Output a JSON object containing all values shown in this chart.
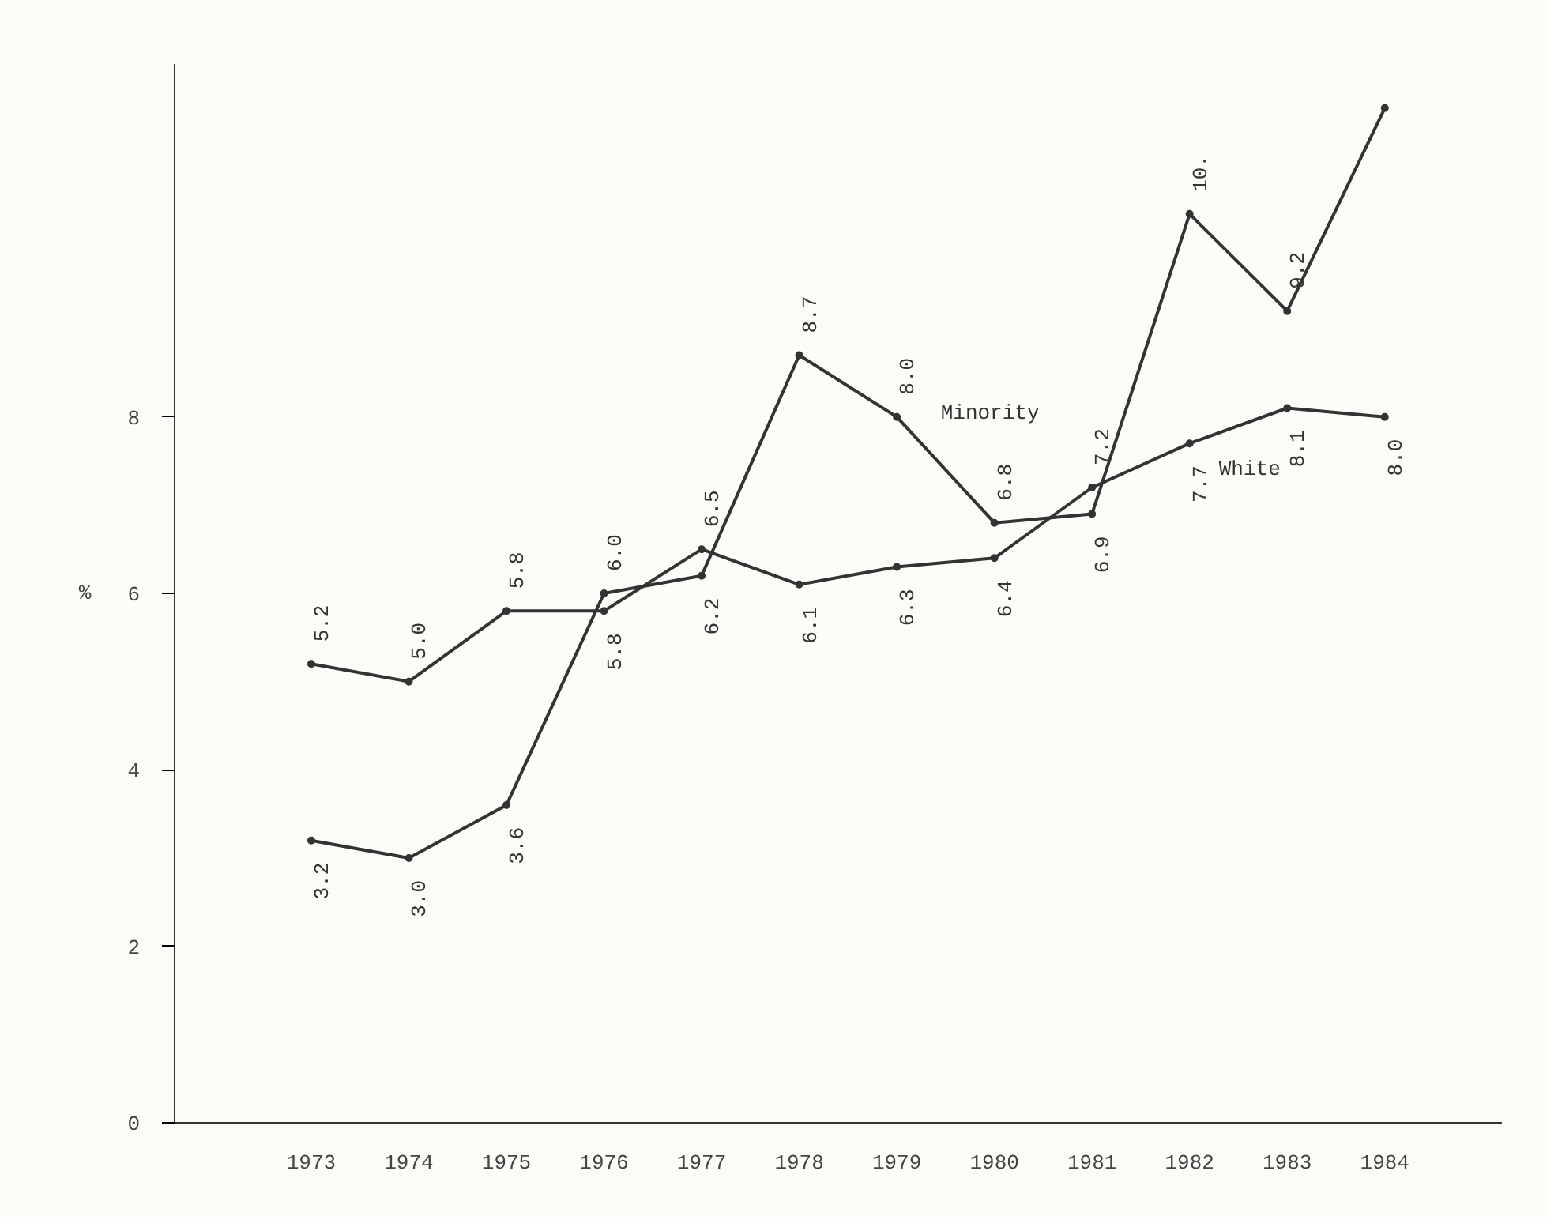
{
  "chart_data": {
    "type": "line",
    "ylabel": "%",
    "x": [
      1973,
      1974,
      1975,
      1976,
      1977,
      1978,
      1979,
      1980,
      1981,
      1982,
      1983,
      1984
    ],
    "xlim": [
      1971.6,
      1985.2
    ],
    "xticks": [
      1973,
      1974,
      1975,
      1976,
      1977,
      1978,
      1979,
      1980,
      1981,
      1982,
      1983,
      1984
    ],
    "ylim": [
      0,
      12
    ],
    "yticks": [
      0,
      2,
      4,
      6,
      8
    ],
    "grid": false,
    "legend": false,
    "marker": "circle",
    "line_style": "solid",
    "series": [
      {
        "name": "Minority",
        "color": "#333333",
        "values": [
          3.2,
          3.0,
          3.6,
          6.0,
          6.2,
          8.7,
          8.0,
          6.8,
          6.9,
          10.3,
          9.2,
          11.5
        ],
        "value_labels": [
          "3.2",
          "3.0",
          "3.6",
          "6.0",
          "6.2",
          "8.7",
          "8.0",
          "6.8",
          "6.9",
          "10.",
          "9.2",
          null
        ]
      },
      {
        "name": "White",
        "color": "#333333",
        "values": [
          5.2,
          5.0,
          5.8,
          5.8,
          6.5,
          6.1,
          6.3,
          6.4,
          7.2,
          7.7,
          8.1,
          8.0
        ],
        "value_labels": [
          "5.2",
          "5.0",
          "5.8",
          "5.8",
          "6.5",
          "6.1",
          "6.3",
          "6.4",
          "7.2",
          "7.7",
          "8.1",
          "8.0"
        ]
      }
    ]
  }
}
